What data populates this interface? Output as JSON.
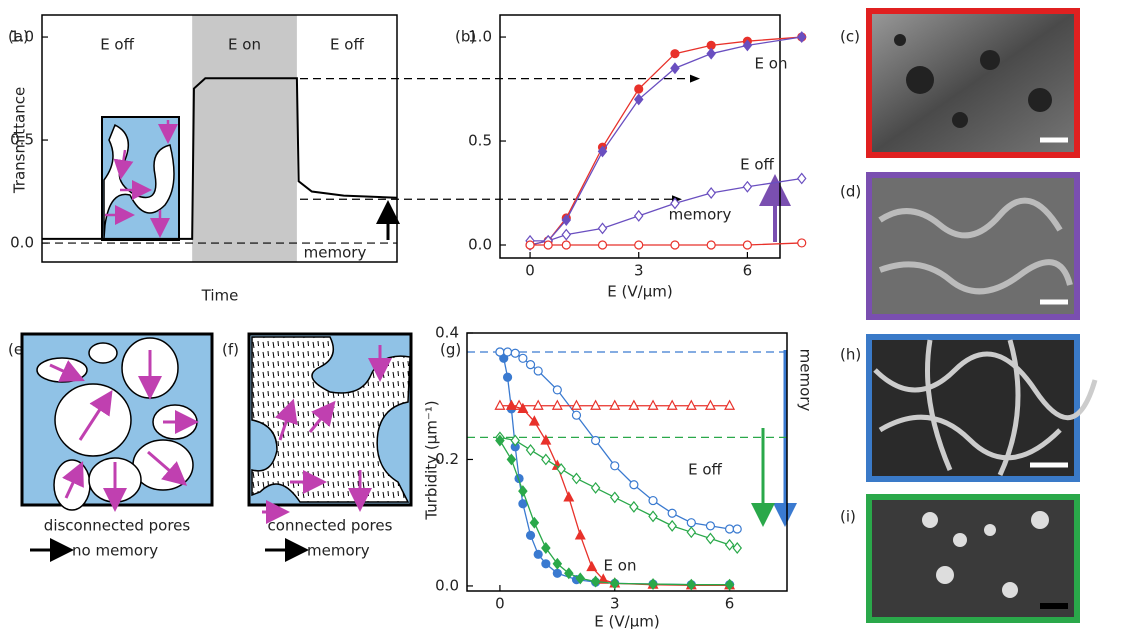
{
  "panel_labels": [
    "(a)",
    "(b)",
    "(c)",
    "(d)",
    "(e)",
    "(f)",
    "(g)",
    "(h)",
    "(i)"
  ],
  "chart_data": [
    {
      "type": "line",
      "ylabel": "Transmittance",
      "xlabel": "Time",
      "region_labels": [
        "E off",
        "E on",
        "E off"
      ],
      "annotations": [
        "memory"
      ],
      "x": [
        0,
        4.23,
        4.28,
        4.6,
        7.18,
        7.23,
        7.6,
        8.5,
        10
      ],
      "series": [
        {
          "color": "#000000",
          "values": [
            0.02,
            0.02,
            0.75,
            0.8,
            0.8,
            0.3,
            0.25,
            0.23,
            0.22
          ]
        }
      ],
      "xlim": [
        0,
        10
      ],
      "ylim": [
        -0.092,
        1.107
      ],
      "yticks": [
        {
          "value": 0,
          "label": "0.0"
        },
        0.5,
        {
          "value": 1,
          "label": "1.0"
        }
      ],
      "shaded": [
        4.23,
        7.18
      ],
      "shade_color": "#c8c8c8",
      "guides": [
        {
          "value": 0,
          "color": "#000000"
        }
      ]
    },
    {
      "type": "line",
      "xlabel": "E (V/μm)",
      "annotations": [
        "E on",
        "E off",
        "memory"
      ],
      "x": [
        0,
        0.5,
        1,
        2,
        3,
        4,
        5,
        6,
        7.5
      ],
      "series": [
        {
          "color": "#e8312a",
          "marker": "circle",
          "filled": true,
          "values": [
            0,
            0.02,
            0.13,
            0.47,
            0.75,
            0.92,
            0.96,
            0.98,
            1.0
          ]
        },
        {
          "color": "#6a4fc0",
          "marker": "diamond",
          "filled": true,
          "values": [
            0,
            0.02,
            0.12,
            0.45,
            0.7,
            0.85,
            0.92,
            0.96,
            1.0
          ]
        },
        {
          "color": "#6a4fc0",
          "marker": "diamond",
          "filled": false,
          "values": [
            0.02,
            0.02,
            0.05,
            0.08,
            0.14,
            0.2,
            0.25,
            0.28,
            0.32
          ]
        },
        {
          "color": "#e8312a",
          "marker": "circle",
          "filled": false,
          "values": [
            0,
            0,
            0,
            0,
            0,
            0,
            0,
            0,
            0.01
          ]
        }
      ],
      "xlim": [
        -0.83,
        6.9
      ],
      "ylim": [
        -0.0625,
        1.106
      ],
      "xticks": [
        0,
        3,
        6
      ],
      "yticks": [
        {
          "value": 0,
          "label": "0.0"
        },
        0.5,
        {
          "value": 1,
          "label": "1.0"
        }
      ],
      "guides": [
        {
          "value": 0.8,
          "color": "#000000"
        },
        {
          "value": 0.22,
          "color": "#000000"
        }
      ]
    },
    {
      "type": "line",
      "ylabel": "Turbidity (μm⁻¹)",
      "xlabel": "E (V/μm)",
      "annotations": [
        "E off",
        "E on",
        "memory"
      ],
      "series": [
        {
          "color": "#3a7ad0",
          "marker": "circle",
          "filled": true,
          "x": [
            0,
            0.1,
            0.2,
            0.3,
            0.4,
            0.5,
            0.6,
            0.8,
            1.0,
            1.2,
            1.5,
            2,
            2.5,
            3,
            4,
            5,
            6
          ],
          "values": [
            0.37,
            0.36,
            0.33,
            0.28,
            0.22,
            0.17,
            0.13,
            0.08,
            0.05,
            0.035,
            0.02,
            0.01,
            0.006,
            0.004,
            0.003,
            0.002,
            0.002
          ]
        },
        {
          "color": "#3a7ad0",
          "marker": "circle",
          "filled": false,
          "x": [
            0,
            0.2,
            0.4,
            0.6,
            0.8,
            1.0,
            1.5,
            2,
            2.5,
            3,
            3.5,
            4,
            4.5,
            5,
            5.5,
            6,
            6.2
          ],
          "values": [
            0.37,
            0.37,
            0.368,
            0.36,
            0.35,
            0.34,
            0.31,
            0.27,
            0.23,
            0.19,
            0.16,
            0.135,
            0.115,
            0.1,
            0.095,
            0.09,
            0.09
          ]
        },
        {
          "color": "#e8312a",
          "marker": "triangle",
          "filled": false,
          "x": [
            0,
            0.5,
            1,
            1.5,
            2,
            2.5,
            3,
            3.5,
            4,
            4.5,
            5,
            5.5,
            6
          ],
          "values": [
            0.285,
            0.285,
            0.285,
            0.285,
            0.285,
            0.285,
            0.285,
            0.285,
            0.285,
            0.285,
            0.285,
            0.285,
            0.285
          ]
        },
        {
          "color": "#e8312a",
          "marker": "triangle",
          "filled": true,
          "x": [
            0.3,
            0.6,
            0.9,
            1.2,
            1.5,
            1.8,
            2.1,
            2.4,
            2.7,
            3,
            4,
            5,
            6
          ],
          "values": [
            0.285,
            0.28,
            0.26,
            0.23,
            0.19,
            0.14,
            0.08,
            0.03,
            0.01,
            0.004,
            0.002,
            0.001,
            0.001
          ]
        },
        {
          "color": "#2aa84a",
          "marker": "diamond",
          "filled": false,
          "x": [
            0,
            0.4,
            0.8,
            1.2,
            1.6,
            2,
            2.5,
            3,
            3.5,
            4,
            4.5,
            5,
            5.5,
            6,
            6.2
          ],
          "values": [
            0.235,
            0.23,
            0.215,
            0.2,
            0.185,
            0.17,
            0.155,
            0.14,
            0.125,
            0.11,
            0.095,
            0.085,
            0.075,
            0.065,
            0.06
          ]
        },
        {
          "color": "#2aa84a",
          "marker": "diamond",
          "filled": true,
          "x": [
            0,
            0.3,
            0.6,
            0.9,
            1.2,
            1.5,
            1.8,
            2.1,
            2.5,
            3,
            4,
            5,
            6
          ],
          "values": [
            0.23,
            0.2,
            0.15,
            0.1,
            0.06,
            0.035,
            0.02,
            0.012,
            0.007,
            0.004,
            0.003,
            0.002,
            0.002
          ]
        }
      ],
      "xlim": [
        -0.86,
        7.5
      ],
      "ylim": [
        -0.008,
        0.4
      ],
      "xticks": [
        0,
        3,
        6
      ],
      "yticks": [
        {
          "value": 0,
          "label": "0.0"
        },
        0.2,
        0.4
      ],
      "guides": [
        {
          "value": 0.37,
          "color": "#3a7ad0"
        },
        {
          "value": 0.235,
          "color": "#2aa84a"
        }
      ]
    }
  ],
  "schematics": {
    "e": {
      "caption": "disconnected pores",
      "result": "no memory"
    },
    "f": {
      "caption": "connected pores",
      "result": "memory"
    }
  }
}
